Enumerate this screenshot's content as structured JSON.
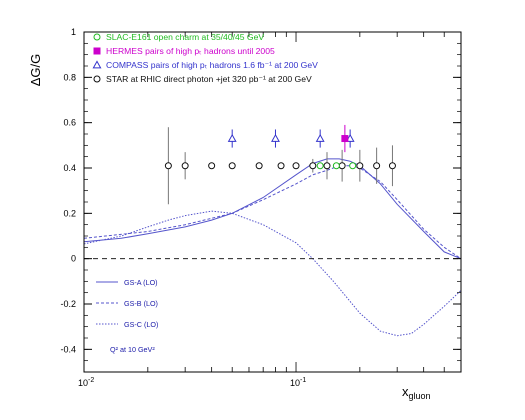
{
  "chart_data": {
    "type": "scatter",
    "title": "",
    "ylabel": "ΔG/G",
    "xlabel": "x",
    "xlabel_sub": "gluon",
    "xscale": "log",
    "xlim": [
      0.01,
      0.6
    ],
    "ylim": [
      -0.5,
      1.0
    ],
    "grid": false,
    "x_ticks": [
      {
        "value": 0.01,
        "base": "10",
        "exp": "-2"
      },
      {
        "value": 0.1,
        "base": "10",
        "exp": "-1"
      }
    ],
    "y_ticks": [
      {
        "value": 1.0,
        "label": "1"
      },
      {
        "value": 0.8,
        "label": "0.8"
      },
      {
        "value": 0.6,
        "label": "0.6"
      },
      {
        "value": 0.4,
        "label": "0.4"
      },
      {
        "value": 0.2,
        "label": "0.2"
      },
      {
        "value": 0.0,
        "label": "0"
      },
      {
        "value": -0.2,
        "label": "-0.2"
      },
      {
        "value": -0.4,
        "label": "-0.4"
      }
    ],
    "legend": [
      {
        "marker": "circle-open",
        "color": "#22bb22",
        "text": "SLAC-E161 open charm at 35/40/45 GeV"
      },
      {
        "marker": "star-filled",
        "color": "#cc00cc",
        "text": "HERMES pairs of high pₜ hadrons until 2005"
      },
      {
        "marker": "triangle-open",
        "color": "#3333cc",
        "text": "COMPASS pairs of high pₜ hadrons 1.6 fb⁻¹ at 200 GeV"
      },
      {
        "marker": "circle-open",
        "color": "#111111",
        "text": "STAR at RHIC direct photon +jet 320 pb⁻¹ at 200 GeV"
      }
    ],
    "series": [
      {
        "name": "STAR at RHIC direct photon +jet 320 pb⁻¹ at 200 GeV",
        "marker": "circle-open",
        "color": "#111111",
        "points": [
          {
            "x": 0.025,
            "y": 0.41,
            "err": 0.17
          },
          {
            "x": 0.03,
            "y": 0.41,
            "err": 0.06
          },
          {
            "x": 0.04,
            "y": 0.41,
            "err": 0
          },
          {
            "x": 0.05,
            "y": 0.41,
            "err": 0
          },
          {
            "x": 0.067,
            "y": 0.41,
            "err": 0
          },
          {
            "x": 0.085,
            "y": 0.41,
            "err": 0
          },
          {
            "x": 0.1,
            "y": 0.41,
            "err": 0
          },
          {
            "x": 0.12,
            "y": 0.41,
            "err": 0.03
          },
          {
            "x": 0.14,
            "y": 0.41,
            "err": 0.06
          },
          {
            "x": 0.165,
            "y": 0.41,
            "err": 0.07
          },
          {
            "x": 0.2,
            "y": 0.41,
            "err": 0.07
          },
          {
            "x": 0.24,
            "y": 0.41,
            "err": 0.08
          },
          {
            "x": 0.285,
            "y": 0.41,
            "err": 0.09
          }
        ]
      },
      {
        "name": "COMPASS pairs of high pₜ hadrons 1.6 fb⁻¹ at 200 GeV",
        "marker": "triangle-open",
        "color": "#3333cc",
        "points": [
          {
            "x": 0.05,
            "y": 0.53,
            "err": 0.04
          },
          {
            "x": 0.08,
            "y": 0.53,
            "err": 0.04
          },
          {
            "x": 0.13,
            "y": 0.53,
            "err": 0.04
          },
          {
            "x": 0.18,
            "y": 0.53,
            "err": 0.04
          }
        ]
      },
      {
        "name": "HERMES pairs of high pₜ hadrons until 2005",
        "marker": "star-filled",
        "color": "#cc00cc",
        "points": [
          {
            "x": 0.17,
            "y": 0.53,
            "err": 0.06
          }
        ]
      },
      {
        "name": "SLAC-E161 open charm at 35/40/45 GeV",
        "marker": "circle-open",
        "color": "#22bb22",
        "points": [
          {
            "x": 0.13,
            "y": 0.41,
            "err": 0
          },
          {
            "x": 0.155,
            "y": 0.41,
            "err": 0
          },
          {
            "x": 0.185,
            "y": 0.41,
            "err": 0
          }
        ]
      }
    ],
    "curves": [
      {
        "name": "GS-A (LO)",
        "style": "solid",
        "color": "#5555cc",
        "points": [
          [
            0.01,
            0.075
          ],
          [
            0.015,
            0.09
          ],
          [
            0.02,
            0.11
          ],
          [
            0.03,
            0.14
          ],
          [
            0.04,
            0.17
          ],
          [
            0.05,
            0.2
          ],
          [
            0.07,
            0.27
          ],
          [
            0.1,
            0.37
          ],
          [
            0.12,
            0.42
          ],
          [
            0.14,
            0.44
          ],
          [
            0.16,
            0.44
          ],
          [
            0.18,
            0.43
          ],
          [
            0.2,
            0.41
          ],
          [
            0.25,
            0.33
          ],
          [
            0.3,
            0.24
          ],
          [
            0.4,
            0.12
          ],
          [
            0.5,
            0.03
          ],
          [
            0.6,
            0.0
          ]
        ]
      },
      {
        "name": "GS-B (LO)",
        "style": "dashed",
        "color": "#5555cc",
        "points": [
          [
            0.01,
            0.09
          ],
          [
            0.02,
            0.12
          ],
          [
            0.03,
            0.15
          ],
          [
            0.05,
            0.2
          ],
          [
            0.07,
            0.26
          ],
          [
            0.1,
            0.33
          ],
          [
            0.12,
            0.37
          ],
          [
            0.14,
            0.39
          ],
          [
            0.16,
            0.41
          ],
          [
            0.18,
            0.41
          ],
          [
            0.2,
            0.4
          ],
          [
            0.25,
            0.34
          ],
          [
            0.3,
            0.26
          ],
          [
            0.4,
            0.13
          ],
          [
            0.5,
            0.05
          ],
          [
            0.6,
            0.0
          ]
        ]
      },
      {
        "name": "GS-C (LO)",
        "style": "dotted",
        "color": "#5555cc",
        "points": [
          [
            0.01,
            0.065
          ],
          [
            0.015,
            0.1
          ],
          [
            0.02,
            0.14
          ],
          [
            0.025,
            0.17
          ],
          [
            0.03,
            0.19
          ],
          [
            0.04,
            0.21
          ],
          [
            0.05,
            0.2
          ],
          [
            0.07,
            0.15
          ],
          [
            0.1,
            0.07
          ],
          [
            0.12,
            0.0
          ],
          [
            0.15,
            -0.1
          ],
          [
            0.2,
            -0.24
          ],
          [
            0.25,
            -0.32
          ],
          [
            0.3,
            -0.34
          ],
          [
            0.35,
            -0.33
          ],
          [
            0.4,
            -0.29
          ],
          [
            0.5,
            -0.21
          ],
          [
            0.6,
            -0.14
          ]
        ]
      }
    ],
    "curve_labels": [
      {
        "text": "GS-A (LO)",
        "style": "solid"
      },
      {
        "text": "GS-B (LO)",
        "style": "dashed"
      },
      {
        "text": "GS-C (LO)",
        "style": "dotted"
      }
    ],
    "scale_note": "Q² at 10 GeV²"
  }
}
